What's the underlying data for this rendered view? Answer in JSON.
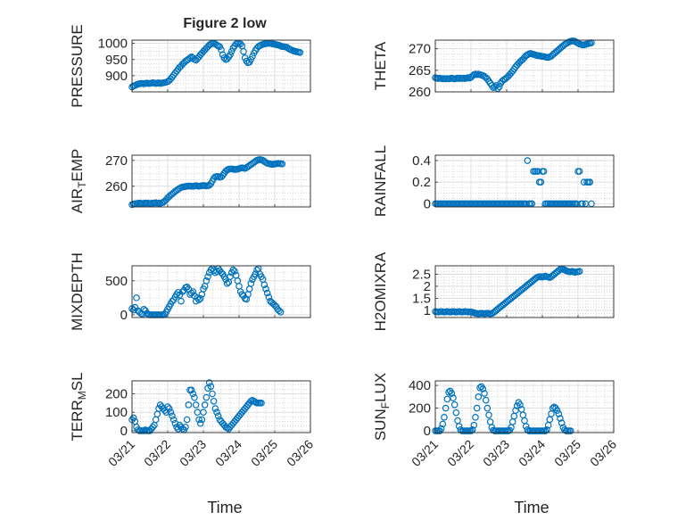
{
  "figure": {
    "title": "Figure 2 low",
    "accent": "#0072BD"
  },
  "chart_data": [
    {
      "type": "scatter",
      "ylabel": "PRESSURE",
      "xlim": [
        "2024-03-21",
        "2024-03-26"
      ],
      "xticks": [
        "03/21",
        "03/22",
        "03/23",
        "03/24",
        "03/25",
        "03/26"
      ],
      "show_xticklabels": false,
      "ylim": [
        850,
        1010
      ],
      "yticks": [
        900,
        950,
        1000
      ],
      "yticklabels": [
        "900",
        "950",
        "1000"
      ],
      "x_start": "2024-03-21",
      "x_step_hours": 1,
      "values": [
        865,
        868,
        870,
        872,
        874,
        875,
        876,
        876,
        875,
        876,
        877,
        876,
        876,
        877,
        878,
        877,
        876,
        877,
        878,
        876,
        877,
        878,
        879,
        880,
        882,
        885,
        890,
        896,
        902,
        908,
        914,
        920,
        926,
        930,
        936,
        940,
        945,
        948,
        951,
        955,
        958,
        955,
        950,
        948,
        953,
        958,
        965,
        970,
        975,
        980,
        985,
        990,
        995,
        998,
        1000,
        1000,
        998,
        995,
        992,
        990,
        980,
        965,
        955,
        950,
        952,
        958,
        965,
        975,
        985,
        992,
        998,
        1000,
        1000,
        998,
        992,
        975,
        955,
        945,
        940,
        942,
        950,
        960,
        970,
        978,
        985,
        990,
        993,
        995,
        997,
        998,
        999,
        1000,
        1000,
        1000,
        999,
        998,
        997,
        996,
        995,
        994,
        992,
        990,
        990,
        989,
        988,
        985,
        982,
        980,
        978,
        976,
        975,
        974,
        973,
        972
      ]
    },
    {
      "type": "scatter",
      "ylabel": "THETA",
      "xlim": [
        "2024-03-21",
        "2024-03-26"
      ],
      "xticks": [
        "03/21",
        "03/22",
        "03/23",
        "03/24",
        "03/25",
        "03/26"
      ],
      "show_xticklabels": false,
      "ylim": [
        260,
        272
      ],
      "yticks": [
        260,
        265,
        270
      ],
      "yticklabels": [
        "260",
        "265",
        "270"
      ],
      "x_start": "2024-03-21",
      "x_step_hours": 1,
      "values": [
        263.3,
        263.2,
        263.1,
        263.2,
        263.1,
        263.0,
        263.1,
        263.0,
        263.1,
        263.0,
        263.1,
        263.2,
        263.1,
        263.0,
        263.1,
        263.2,
        263.1,
        263.2,
        263.1,
        263.2,
        263.1,
        263.2,
        263.3,
        263.2,
        263.4,
        263.7,
        264.0,
        264.1,
        264.0,
        264.1,
        264.0,
        263.9,
        263.8,
        263.6,
        263.3,
        263.0,
        262.5,
        262.0,
        261.5,
        261.0,
        261.2,
        261.5,
        260.8,
        261.2,
        262.0,
        262.5,
        262.8,
        263.0,
        263.3,
        263.6,
        264.0,
        264.4,
        264.8,
        265.3,
        265.8,
        266.2,
        266.6,
        267.0,
        267.3,
        267.6,
        268.0,
        268.4,
        268.6,
        268.8,
        268.9,
        268.8,
        268.7,
        268.6,
        268.5,
        268.4,
        268.4,
        268.3,
        268.2,
        268.2,
        268.1,
        268.0,
        268.0,
        268.1,
        268.3,
        268.6,
        268.9,
        269.2,
        269.5,
        269.8,
        270.1,
        270.4,
        270.7,
        271.0,
        271.2,
        271.4,
        271.6,
        271.7,
        271.8,
        271.8,
        271.7,
        271.5,
        271.3,
        271.1,
        271.0,
        270.9,
        270.9,
        271.0,
        271.1,
        271.2,
        271.3,
        271.4
      ]
    },
    {
      "type": "scatter",
      "ylabel": "AIR_TEMP",
      "ylabel_parts": [
        "AIR",
        "T",
        "EMP"
      ],
      "xlim": [
        "2024-03-21",
        "2024-03-26"
      ],
      "xticks": [
        "03/21",
        "03/22",
        "03/23",
        "03/24",
        "03/25",
        "03/26"
      ],
      "show_xticklabels": false,
      "ylim": [
        252,
        272
      ],
      "yticks": [
        260,
        270
      ],
      "yticklabels": [
        "260",
        "270"
      ],
      "x_start": "2024-03-21",
      "x_step_hours": 1,
      "values": [
        252.9,
        253.1,
        253.2,
        253.3,
        253.4,
        253.5,
        253.4,
        253.3,
        253.4,
        253.5,
        253.5,
        253.4,
        253.3,
        253.4,
        253.5,
        253.5,
        253.6,
        253.5,
        253.5,
        253.4,
        253.6,
        253.8,
        254.2,
        254.8,
        255.5,
        256.0,
        256.6,
        257.0,
        257.5,
        258.0,
        258.4,
        258.8,
        259.2,
        259.5,
        259.7,
        259.8,
        259.9,
        260.0,
        260.1,
        260.1,
        260.0,
        260.0,
        260.1,
        260.2,
        260.1,
        260.0,
        260.1,
        260.2,
        260.3,
        260.2,
        260.1,
        260.2,
        260.4,
        261.0,
        262.0,
        263.0,
        263.6,
        263.8,
        263.7,
        263.5,
        263.6,
        264.2,
        265.0,
        265.8,
        266.3,
        266.6,
        266.7,
        266.7,
        266.6,
        266.5,
        266.5,
        266.6,
        266.8,
        267.0,
        267.1,
        267.0,
        266.9,
        267.2,
        267.6,
        268.0,
        268.4,
        268.8,
        269.2,
        269.6,
        270.0,
        270.2,
        270.3,
        270.2,
        270.0,
        269.6,
        269.2,
        268.9,
        268.7,
        268.6,
        268.5,
        268.5,
        268.6,
        268.7,
        268.8,
        268.8,
        268.7,
        268.6
      ]
    },
    {
      "type": "scatter",
      "ylabel": "RAINFALL",
      "xlim": [
        "2024-03-21",
        "2024-03-26"
      ],
      "xticks": [
        "03/21",
        "03/22",
        "03/23",
        "03/24",
        "03/25",
        "03/26"
      ],
      "show_xticklabels": false,
      "ylim": [
        -0.03,
        0.45
      ],
      "yticks": [
        0,
        0.2,
        0.4
      ],
      "yticklabels": [
        "0",
        "0.2",
        "0.4"
      ],
      "x_start": "2024-03-21",
      "x_step_hours": 1,
      "values": [
        0,
        0,
        0,
        0,
        0,
        0,
        0,
        0,
        0,
        0,
        0,
        0,
        0,
        0,
        0,
        0,
        0,
        0,
        0,
        0,
        0,
        0,
        0,
        0,
        0,
        0,
        0,
        0,
        0,
        0,
        0,
        0,
        0,
        0,
        0,
        0,
        0,
        0,
        0,
        0,
        0,
        0,
        0,
        0,
        0,
        0,
        0,
        0,
        0,
        0,
        0,
        0,
        0,
        0,
        0,
        0,
        0,
        0,
        0,
        0,
        0,
        0,
        0.4,
        0,
        0,
        0,
        0.3,
        0.3,
        0.3,
        0.3,
        0.2,
        0.2,
        0.3,
        0.3,
        0,
        0,
        0,
        0,
        0,
        0,
        0,
        0,
        0,
        0,
        0,
        0,
        0,
        0,
        0,
        0,
        0,
        0,
        0,
        0,
        0,
        0,
        0.3,
        0.3,
        0,
        0,
        0.2,
        0,
        0.2,
        0.2,
        0.2,
        0
      ]
    },
    {
      "type": "scatter",
      "ylabel": "MIXDEPTH",
      "xlim": [
        "2024-03-21",
        "2024-03-26"
      ],
      "xticks": [
        "03/21",
        "03/22",
        "03/23",
        "03/24",
        "03/25",
        "03/26"
      ],
      "show_xticklabels": false,
      "ylim": [
        -40,
        720
      ],
      "yticks": [
        0,
        500
      ],
      "yticklabels": [
        "0",
        "500"
      ],
      "x_start": "2024-03-21",
      "x_step_hours": 1,
      "values": [
        90,
        70,
        110,
        250,
        60,
        40,
        20,
        10,
        80,
        60,
        20,
        10,
        0,
        0,
        0,
        0,
        0,
        0,
        0,
        0,
        0,
        0,
        10,
        40,
        80,
        120,
        160,
        200,
        220,
        260,
        300,
        330,
        290,
        200,
        340,
        360,
        400,
        410,
        380,
        300,
        320,
        340,
        280,
        200,
        250,
        220,
        240,
        300,
        380,
        420,
        500,
        560,
        620,
        660,
        680,
        650,
        620,
        640,
        680,
        650,
        620,
        600,
        560,
        520,
        460,
        480,
        560,
        620,
        660,
        640,
        580,
        500,
        420,
        340,
        300,
        280,
        240,
        230,
        300,
        380,
        460,
        520,
        560,
        600,
        660,
        680,
        600,
        560,
        520,
        440,
        380,
        320,
        260,
        200,
        180,
        160,
        140,
        120,
        80,
        60,
        40
      ]
    },
    {
      "type": "scatter",
      "ylabel": "H2OMIXRA",
      "xlim": [
        "2024-03-21",
        "2024-03-26"
      ],
      "xticks": [
        "03/21",
        "03/22",
        "03/23",
        "03/24",
        "03/25",
        "03/26"
      ],
      "show_xticklabels": false,
      "ylim": [
        0.7,
        2.85
      ],
      "yticks": [
        1,
        1.5,
        2,
        2.5
      ],
      "yticklabels": [
        "1",
        "1.5",
        "2",
        "2.5"
      ],
      "x_start": "2024-03-21",
      "x_step_hours": 1,
      "values": [
        0.95,
        0.94,
        0.93,
        0.94,
        0.95,
        0.94,
        0.93,
        0.94,
        0.95,
        0.94,
        0.93,
        0.94,
        0.95,
        0.94,
        0.93,
        0.94,
        0.95,
        0.94,
        0.93,
        0.94,
        0.95,
        0.94,
        0.93,
        0.94,
        0.93,
        0.92,
        0.9,
        0.88,
        0.87,
        0.86,
        0.87,
        0.88,
        0.87,
        0.86,
        0.87,
        0.88,
        0.87,
        0.86,
        0.87,
        0.9,
        0.95,
        1.0,
        1.05,
        1.1,
        1.15,
        1.2,
        1.25,
        1.3,
        1.35,
        1.4,
        1.45,
        1.5,
        1.55,
        1.6,
        1.65,
        1.7,
        1.75,
        1.8,
        1.85,
        1.9,
        1.95,
        2.0,
        2.05,
        2.1,
        2.15,
        2.2,
        2.25,
        2.3,
        2.35,
        2.38,
        2.4,
        2.4,
        2.38,
        2.4,
        2.42,
        2.4,
        2.38,
        2.36,
        2.4,
        2.45,
        2.5,
        2.55,
        2.6,
        2.65,
        2.7,
        2.72,
        2.7,
        2.68,
        2.65,
        2.62,
        2.6,
        2.6,
        2.62,
        2.6,
        2.58,
        2.6,
        2.6,
        2.62
      ]
    },
    {
      "type": "scatter",
      "ylabel": "TERR_MSL",
      "ylabel_parts": [
        "TERR",
        "M",
        "SL"
      ],
      "xlim": [
        "2024-03-21",
        "2024-03-26"
      ],
      "xticks": [
        "03/21",
        "03/22",
        "03/23",
        "03/24",
        "03/25",
        "03/26"
      ],
      "show_xticklabels": true,
      "ylim": [
        -10,
        270
      ],
      "yticks": [
        0,
        100,
        200
      ],
      "yticklabels": [
        "0",
        "100",
        "200"
      ],
      "x_start": "2024-03-21",
      "x_step_hours": 1,
      "values": [
        60,
        70,
        50,
        20,
        5,
        0,
        0,
        0,
        0,
        5,
        0,
        0,
        0,
        10,
        20,
        30,
        60,
        90,
        120,
        140,
        130,
        120,
        110,
        100,
        130,
        120,
        100,
        80,
        60,
        40,
        20,
        10,
        30,
        20,
        10,
        5,
        20,
        60,
        140,
        220,
        220,
        200,
        180,
        140,
        100,
        60,
        40,
        60,
        100,
        140,
        180,
        230,
        260,
        240,
        200,
        160,
        120,
        100,
        80,
        60,
        50,
        40,
        30,
        20,
        15,
        10,
        20,
        30,
        40,
        50,
        60,
        70,
        80,
        90,
        100,
        110,
        120,
        130,
        140,
        150,
        160,
        165,
        160,
        155,
        150,
        150,
        150,
        150
      ]
    },
    {
      "type": "scatter",
      "ylabel": "SUN_FLUX",
      "ylabel_parts": [
        "SUN",
        "F",
        "LUX"
      ],
      "xlim": [
        "2024-03-21",
        "2024-03-26"
      ],
      "xticks": [
        "03/21",
        "03/22",
        "03/23",
        "03/24",
        "03/25",
        "03/26"
      ],
      "show_xticklabels": true,
      "ylim": [
        -15,
        440
      ],
      "yticks": [
        0,
        200,
        400
      ],
      "yticklabels": [
        "0",
        "200",
        "400"
      ],
      "x_start": "2024-03-21",
      "x_step_hours": 1,
      "values": [
        0,
        0,
        0,
        0,
        20,
        60,
        120,
        200,
        280,
        340,
        350,
        330,
        290,
        230,
        160,
        90,
        40,
        10,
        0,
        0,
        0,
        0,
        0,
        0,
        0,
        10,
        50,
        120,
        200,
        300,
        380,
        390,
        370,
        330,
        270,
        200,
        140,
        80,
        30,
        5,
        0,
        0,
        0,
        0,
        0,
        0,
        0,
        0,
        0,
        0,
        5,
        30,
        80,
        130,
        180,
        220,
        250,
        230,
        190,
        140,
        90,
        40,
        10,
        0,
        0,
        0,
        0,
        0,
        0,
        0,
        0,
        0,
        0,
        0,
        0,
        10,
        50,
        100,
        150,
        200,
        210,
        200,
        180,
        150,
        110,
        70,
        30,
        10,
        0,
        0,
        0,
        0
      ]
    }
  ],
  "xlabel": "Time"
}
